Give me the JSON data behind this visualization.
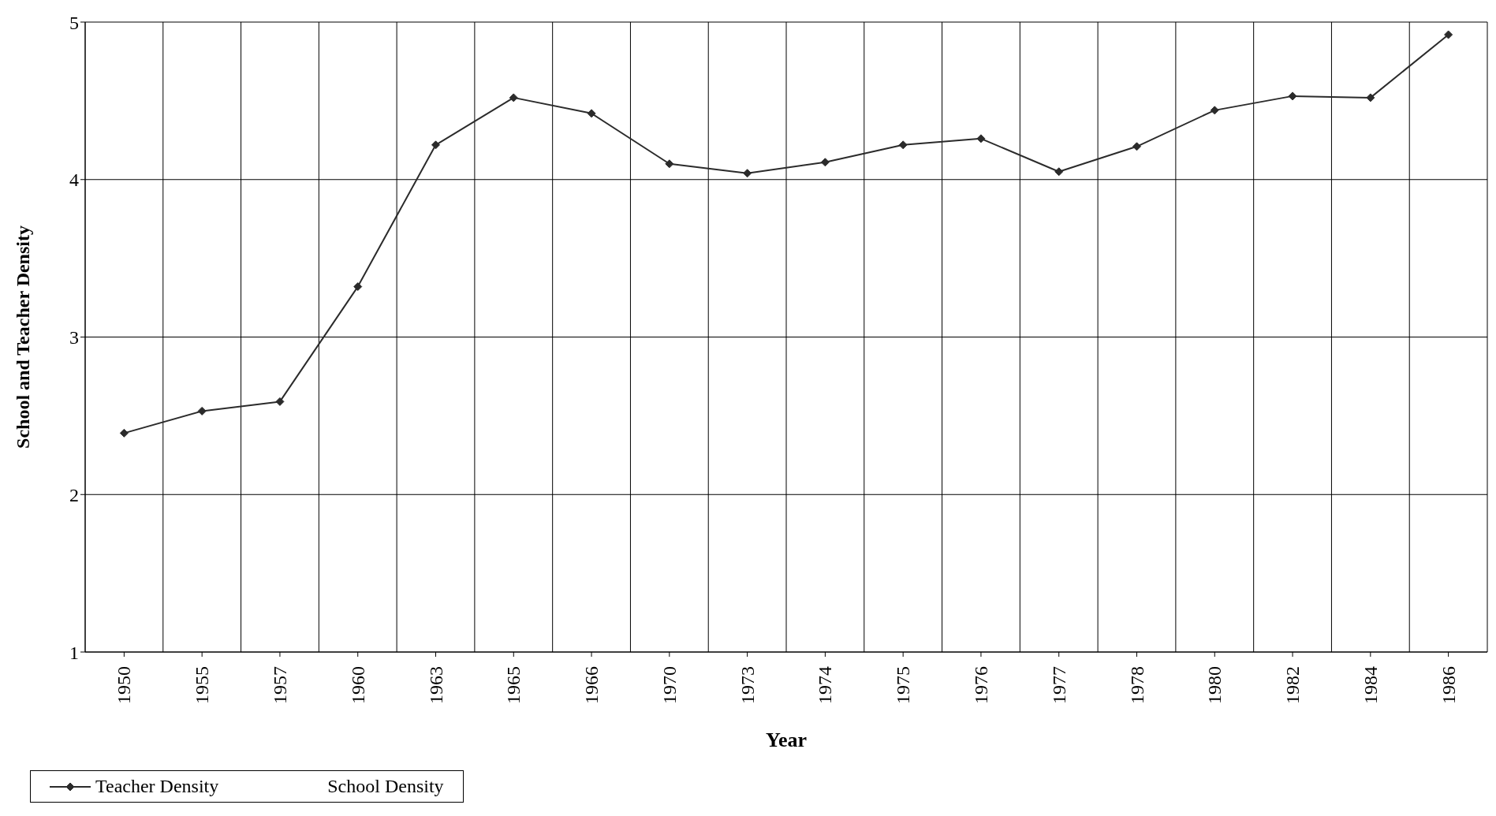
{
  "chart_data": {
    "type": "line",
    "xlabel": "Year",
    "ylabel": "School and Teacher Density",
    "categories": [
      "1950",
      "1955",
      "1957",
      "1960",
      "1963",
      "1965",
      "1966",
      "1970",
      "1973",
      "1974",
      "1975",
      "1976",
      "1977",
      "1978",
      "1980",
      "1982",
      "1984",
      "1986"
    ],
    "series": [
      {
        "name": "Teacher  Density",
        "color": "#2b2b2b",
        "values": [
          2.39,
          2.53,
          2.59,
          3.32,
          4.22,
          4.52,
          4.42,
          4.1,
          4.04,
          4.11,
          4.22,
          4.26,
          4.05,
          4.21,
          4.44,
          4.53,
          4.52,
          4.92
        ]
      },
      {
        "name": "School Density",
        "values": [
          null,
          null,
          null,
          null,
          null,
          null,
          null,
          null,
          null,
          null,
          null,
          null,
          null,
          null,
          null,
          null,
          null,
          null
        ]
      }
    ],
    "ylim": [
      1,
      5
    ],
    "yticks": [
      1,
      2,
      3,
      4,
      5
    ],
    "grid": true,
    "legend": "bottom",
    "marker": "diamond",
    "line_style": "solid"
  }
}
